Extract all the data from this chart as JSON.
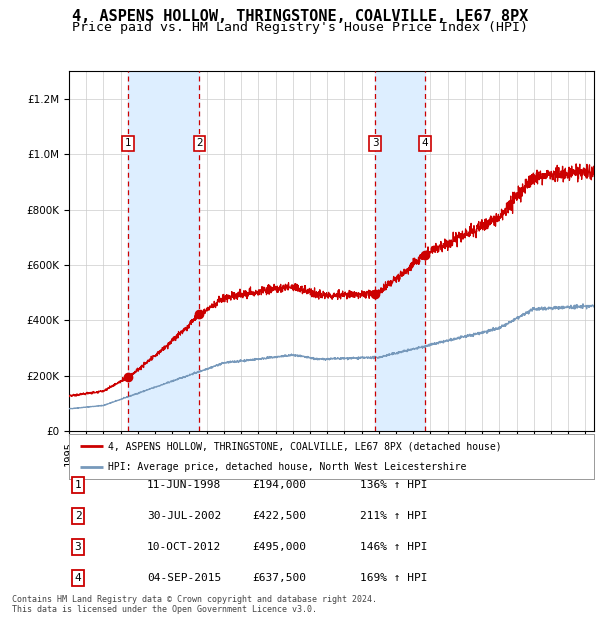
{
  "title": "4, ASPENS HOLLOW, THRINGSTONE, COALVILLE, LE67 8PX",
  "subtitle": "Price paid vs. HM Land Registry's House Price Index (HPI)",
  "legend_label_red": "4, ASPENS HOLLOW, THRINGSTONE, COALVILLE, LE67 8PX (detached house)",
  "legend_label_blue": "HPI: Average price, detached house, North West Leicestershire",
  "footer1": "Contains HM Land Registry data © Crown copyright and database right 2024.",
  "footer2": "This data is licensed under the Open Government Licence v3.0.",
  "sales": [
    {
      "num": 1,
      "date": "11-JUN-1998",
      "price": 194000,
      "pct": "136%",
      "arrow": "↑",
      "label": "HPI"
    },
    {
      "num": 2,
      "date": "30-JUL-2002",
      "price": 422500,
      "pct": "211%",
      "arrow": "↑",
      "label": "HPI"
    },
    {
      "num": 3,
      "date": "10-OCT-2012",
      "price": 495000,
      "pct": "146%",
      "arrow": "↑",
      "label": "HPI"
    },
    {
      "num": 4,
      "date": "04-SEP-2015",
      "price": 637500,
      "pct": "169%",
      "arrow": "↑",
      "label": "HPI"
    }
  ],
  "sale_dates_decimal": [
    1998.44,
    2002.58,
    2012.78,
    2015.67
  ],
  "sale_prices": [
    194000,
    422500,
    495000,
    637500
  ],
  "ylim": [
    0,
    1300000
  ],
  "xlim_start": 1995.0,
  "xlim_end": 2025.5,
  "bg_color": "#ffffff",
  "red_color": "#cc0000",
  "blue_color": "#7799bb",
  "shade_color": "#ddeeff",
  "grid_color": "#cccccc",
  "title_fontsize": 11,
  "subtitle_fontsize": 9.5,
  "tick_fontsize": 7.5
}
